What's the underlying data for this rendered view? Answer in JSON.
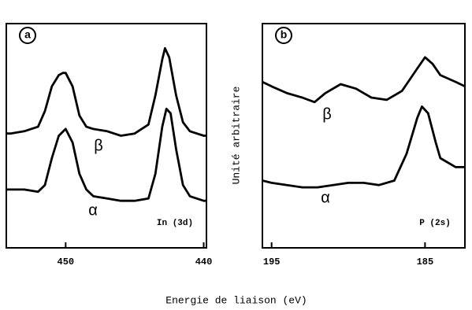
{
  "figure": {
    "xlabel": "Energie de liaison (eV)",
    "ylabel": "Unité arbitraire"
  },
  "chart_data": [
    {
      "type": "line",
      "panel_label": "a",
      "annotation": "In (3d)",
      "xlim": [
        454.3,
        439.8
      ],
      "xticks": [
        450,
        440
      ],
      "ylim": [
        0,
        100
      ],
      "series": [
        {
          "name": "β",
          "color": "#000000",
          "x": [
            454.3,
            454,
            453,
            452,
            451.5,
            451,
            450.5,
            450.2,
            450,
            449.5,
            449,
            448.5,
            448,
            447,
            446,
            445,
            444,
            443.5,
            443,
            442.8,
            442.5,
            442,
            441.5,
            441,
            440,
            439.8
          ],
          "values": [
            51,
            51,
            52,
            54,
            61,
            72,
            77,
            78,
            78,
            72,
            59,
            54,
            53,
            52,
            50,
            51,
            55,
            68,
            84,
            89,
            85,
            68,
            56,
            52,
            50,
            50
          ]
        },
        {
          "name": "α",
          "color": "#000000",
          "x": [
            454.3,
            454,
            453,
            452,
            451.5,
            451,
            450.5,
            450,
            449.5,
            449,
            448.5,
            448,
            447,
            446,
            445,
            444,
            443.5,
            443,
            442.7,
            442.4,
            442,
            441.5,
            441,
            440,
            439.8
          ],
          "values": [
            26,
            26,
            26,
            25,
            28,
            40,
            50,
            53,
            47,
            33,
            26,
            23,
            22,
            21,
            21,
            22,
            33,
            54,
            62,
            60,
            44,
            28,
            23,
            21,
            21
          ]
        }
      ]
    },
    {
      "type": "line",
      "panel_label": "b",
      "annotation": "P (2s)",
      "xlim": [
        195.6,
        182.4
      ],
      "xticks": [
        195,
        185
      ],
      "ylim": [
        0,
        100
      ],
      "series": [
        {
          "name": "β",
          "color": "#000000",
          "x": [
            195.6,
            195,
            194,
            193,
            192.2,
            191.5,
            190.5,
            189.5,
            188.5,
            187.5,
            186.5,
            185.5,
            185,
            184.5,
            184,
            183,
            182.4
          ],
          "values": [
            74,
            72,
            69,
            67,
            65,
            69,
            73,
            71,
            67,
            66,
            70,
            80,
            85,
            82,
            77,
            74,
            72
          ]
        },
        {
          "name": "α",
          "color": "#000000",
          "x": [
            195.6,
            195,
            194,
            193,
            192,
            191,
            190,
            189,
            188,
            187,
            186.2,
            185.5,
            185.2,
            184.8,
            184.3,
            184,
            183,
            182.4
          ],
          "values": [
            30,
            29,
            28,
            27,
            27,
            28,
            29,
            29,
            28,
            30,
            42,
            58,
            63,
            60,
            47,
            40,
            36,
            36
          ]
        }
      ]
    }
  ]
}
